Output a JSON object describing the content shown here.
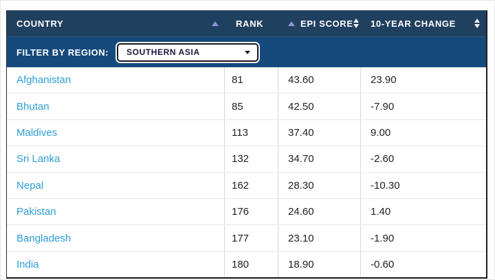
{
  "colors": {
    "header_bg": "#20405f",
    "filter_bg": "#164a7c",
    "link_blue": "#2b9cd6",
    "sort_arrow_active": "#8a93d8",
    "sort_arrow_idle": "#f2f5fa"
  },
  "table": {
    "columns": [
      {
        "label": "COUNTRY",
        "sort": "ascending"
      },
      {
        "label": "RANK",
        "sort": "ascending"
      },
      {
        "label": "EPI SCORE",
        "sort": "unsorted"
      },
      {
        "label": "10-YEAR CHANGE",
        "sort": "unsorted"
      }
    ],
    "filter": {
      "label": "FILTER BY REGION:",
      "selected_option": "SOUTHERN ASIA"
    },
    "rows": [
      {
        "country": "Afghanistan",
        "rank": "81",
        "epi_score": "43.60",
        "ten_year_change": "23.90"
      },
      {
        "country": "Bhutan",
        "rank": "85",
        "epi_score": "42.50",
        "ten_year_change": "-7.90"
      },
      {
        "country": "Maldives",
        "rank": "113",
        "epi_score": "37.40",
        "ten_year_change": "9.00"
      },
      {
        "country": "Sri Lanka",
        "rank": "132",
        "epi_score": "34.70",
        "ten_year_change": "-2.60"
      },
      {
        "country": "Nepal",
        "rank": "162",
        "epi_score": "28.30",
        "ten_year_change": "-10.30"
      },
      {
        "country": "Pakistan",
        "rank": "176",
        "epi_score": "24.60",
        "ten_year_change": "1.40"
      },
      {
        "country": "Bangladesh",
        "rank": "177",
        "epi_score": "23.10",
        "ten_year_change": "-1.90"
      },
      {
        "country": "India",
        "rank": "180",
        "epi_score": "18.90",
        "ten_year_change": "-0.60"
      }
    ]
  }
}
